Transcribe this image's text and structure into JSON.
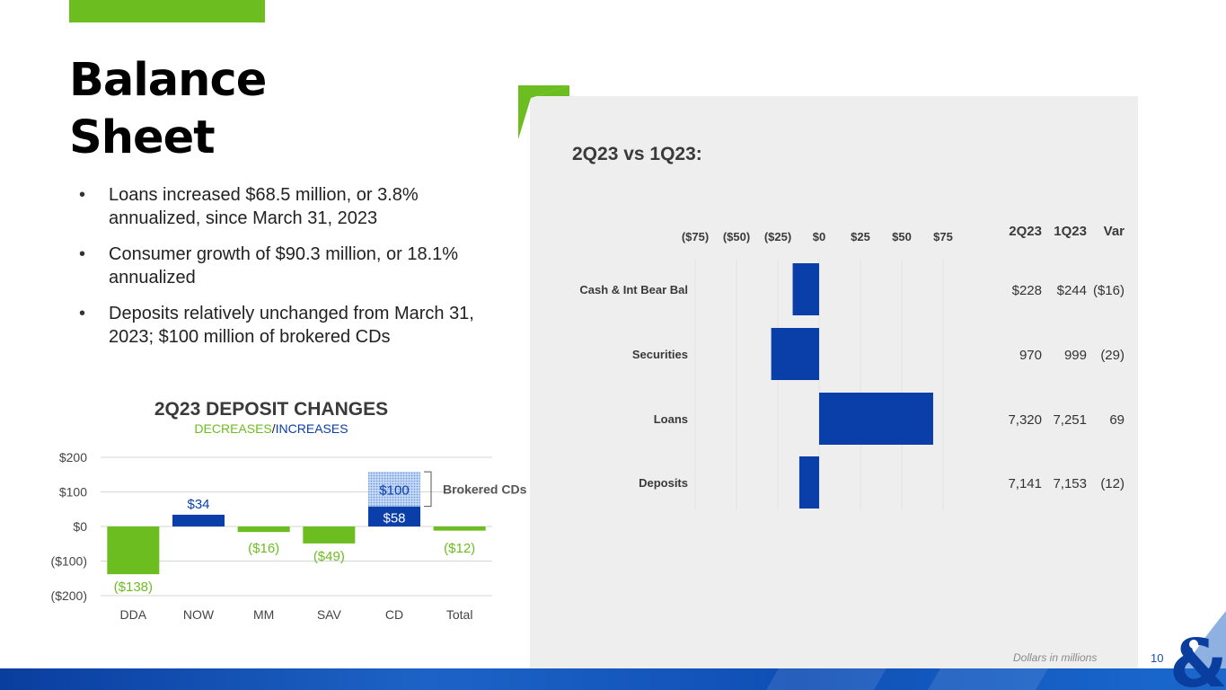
{
  "title_lines": [
    "Balance",
    "Sheet"
  ],
  "bullets": [
    "Loans increased $68.5 million, or 3.8% annualized, since March 31, 2023",
    "Consumer growth of $90.3 million, or 18.1% annualized",
    "Deposits relatively unchanged from March 31, 2023; $100 million of brokered CDs"
  ],
  "colors": {
    "green": "#6cbd1f",
    "blue": "#0a3ea8",
    "light_blue": "#9cbcf0",
    "panel": "#eeeeee"
  },
  "panel_title": "2Q23 vs 1Q23:",
  "footnote": "Dollars in millions",
  "page_number": "10",
  "chart_data": [
    {
      "type": "bar",
      "title": "2Q23 DEPOSIT CHANGES",
      "subtitle_decreases": "DECREASES",
      "subtitle_separator": "/",
      "subtitle_increases": "INCREASES",
      "categories": [
        "DDA",
        "NOW",
        "MM",
        "SAV",
        "CD",
        "Total"
      ],
      "values": [
        -138,
        34,
        -16,
        -49,
        58,
        -12
      ],
      "value_labels": [
        "($138)",
        "$34",
        "($16)",
        "($49)",
        "$58",
        "($12)"
      ],
      "stacked_extra": {
        "category": "CD",
        "value": 100,
        "label": "$100",
        "annotation": "Brokered CDs"
      },
      "ylim": [
        -200,
        200
      ],
      "yticks": [
        200,
        100,
        0,
        -100,
        -200
      ],
      "ytick_labels": [
        "$200",
        "$100",
        "$0",
        "($100)",
        "($200)"
      ],
      "grid": true
    },
    {
      "type": "bar",
      "orientation": "horizontal",
      "title": "2Q23 vs 1Q23:",
      "categories": [
        "Cash & Int Bear Bal",
        "Securities",
        "Loans",
        "Deposits"
      ],
      "values": [
        -16,
        -29,
        69,
        -12
      ],
      "xlim": [
        -75,
        75
      ],
      "xticks": [
        -75,
        -50,
        -25,
        0,
        25,
        50,
        75
      ],
      "xtick_labels": [
        "($75)",
        "($50)",
        "($25)",
        "$0",
        "$25",
        "$50",
        "$75"
      ],
      "table": {
        "headers": [
          "2Q23",
          "1Q23",
          "Var"
        ],
        "rows": [
          [
            "$228",
            "$244",
            "($16)"
          ],
          [
            "970",
            "999",
            "(29)"
          ],
          [
            "7,320",
            "7,251",
            "69"
          ],
          [
            "7,141",
            "7,153",
            "(12)"
          ]
        ]
      }
    }
  ]
}
